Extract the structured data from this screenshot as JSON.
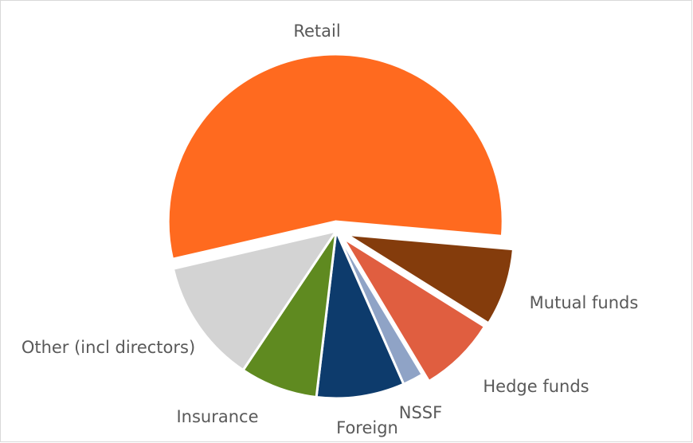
{
  "chart_data": {
    "type": "pie",
    "categories": [
      "Retail",
      "Mutual funds",
      "Hedge funds",
      "NSSF",
      "Foreign",
      "Insurance",
      "Other (incl directors)"
    ],
    "values": [
      55,
      7.5,
      7.5,
      2,
      8.5,
      7.5,
      12
    ],
    "colors": [
      "#ff6a1f",
      "#843c0c",
      "#e05e40",
      "#8fa3c6",
      "#0d3b6c",
      "#5f8a20",
      "#d3d3d3"
    ]
  }
}
